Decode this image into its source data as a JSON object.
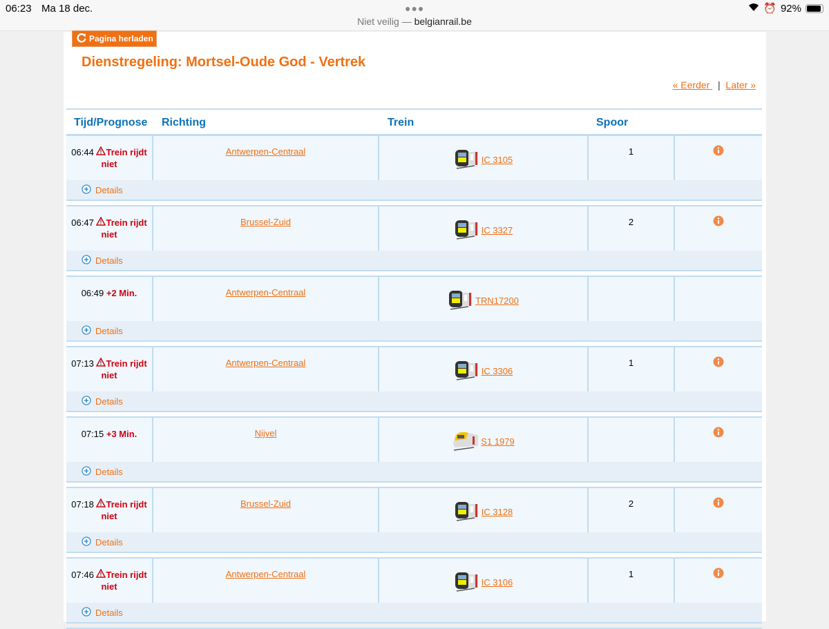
{
  "status_bar": {
    "time": "06:23",
    "date": "Ma 18 dec.",
    "url_prefix": "Niet veilig —",
    "url_domain": "belgianrail.be",
    "battery": "92%",
    "battery_level": 92
  },
  "reload_label": "Pagina herladen",
  "title": "Dienstregeling: Mortsel-Oude God - Vertrek",
  "pager": {
    "earlier": "« Eerder ",
    "sep": "|",
    "later": "Later »"
  },
  "columns": [
    "Tijd/Prognose",
    "Richting",
    "Trein",
    "Spoor"
  ],
  "details_label": "Details",
  "colors": {
    "accent": "#f07012",
    "header": "#0d72b8",
    "alert": "#d00010"
  },
  "rows": [
    {
      "time": "06:44",
      "status": "Trein rijdt niet",
      "cancelled": true,
      "direction": "Antwerpen-Centraal",
      "train": "IC 3105",
      "train_type": "ic",
      "platform": "1",
      "info": true
    },
    {
      "time": "06:47",
      "status": "Trein rijdt niet",
      "cancelled": true,
      "direction": "Brussel-Zuid",
      "train": "IC 3327",
      "train_type": "ic",
      "platform": "2",
      "info": true
    },
    {
      "time": "06:49",
      "status": "+2 Min.",
      "cancelled": false,
      "direction": "Antwerpen-Centraal",
      "train": "TRN17200",
      "train_type": "ic",
      "platform": "",
      "info": false
    },
    {
      "time": "07:13",
      "status": "Trein rijdt niet",
      "cancelled": true,
      "direction": "Antwerpen-Centraal",
      "train": "IC 3306",
      "train_type": "ic",
      "platform": "1",
      "info": true
    },
    {
      "time": "07:15",
      "status": "+3 Min.",
      "cancelled": false,
      "direction": "Nijvel",
      "train": "S1 1979",
      "train_type": "s",
      "platform": "",
      "info": true
    },
    {
      "time": "07:18",
      "status": "Trein rijdt niet",
      "cancelled": true,
      "direction": "Brussel-Zuid",
      "train": "IC 3128",
      "train_type": "ic",
      "platform": "2",
      "info": true
    },
    {
      "time": "07:46",
      "status": "Trein rijdt niet",
      "cancelled": true,
      "direction": "Antwerpen-Centraal",
      "train": "IC 3106",
      "train_type": "ic",
      "platform": "1",
      "info": true
    }
  ]
}
